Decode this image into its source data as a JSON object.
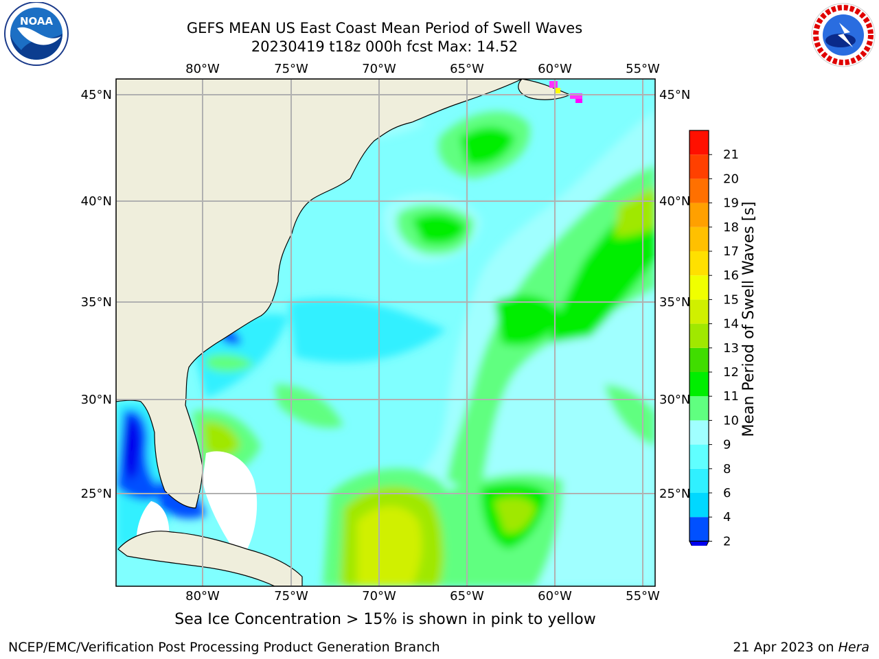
{
  "title_line1": "GEFS MEAN US East Coast Mean Period of Swell Waves",
  "title_line2": "20230419 t18z 000h fcst   Max: 14.52",
  "lon_labels": [
    "80°W",
    "75°W",
    "70°W",
    "65°W",
    "60°W",
    "55°W"
  ],
  "lat_labels": [
    "45°N",
    "40°N",
    "35°N",
    "30°N",
    "25°N"
  ],
  "colorbar": {
    "label": "Mean Period of Swell Waves [s]",
    "ticks": [
      "2",
      "4",
      "6",
      "8",
      "9",
      "10",
      "11",
      "12",
      "13",
      "14",
      "15",
      "16",
      "17",
      "18",
      "19",
      "20",
      "21"
    ],
    "colors": [
      "#0050ff",
      "#00d8ff",
      "#30f0ff",
      "#60ffff",
      "#a0ffff",
      "#60ff80",
      "#00ee00",
      "#40dd00",
      "#a0e800",
      "#d0f000",
      "#f0ff00",
      "#ffe000",
      "#ffc000",
      "#ffa000",
      "#ff7000",
      "#ff4000",
      "#ff1000"
    ],
    "extend_color": "#0000ee"
  },
  "colors": {
    "land": "#efeedc",
    "ocean_base": "#80ffff",
    "grid": "#b0b0b0"
  },
  "sea_ice_note": "Sea Ice Concentration > 15% is shown in pink to yellow",
  "credit": "NCEP/EMC/Verification Post Processing Product Generation Branch",
  "date_text": "21 Apr 2023 on ",
  "date_machine": "Hera",
  "logos": {
    "noaa": "NOAA",
    "nws": "NATIONAL WEATHER SERVICE"
  }
}
